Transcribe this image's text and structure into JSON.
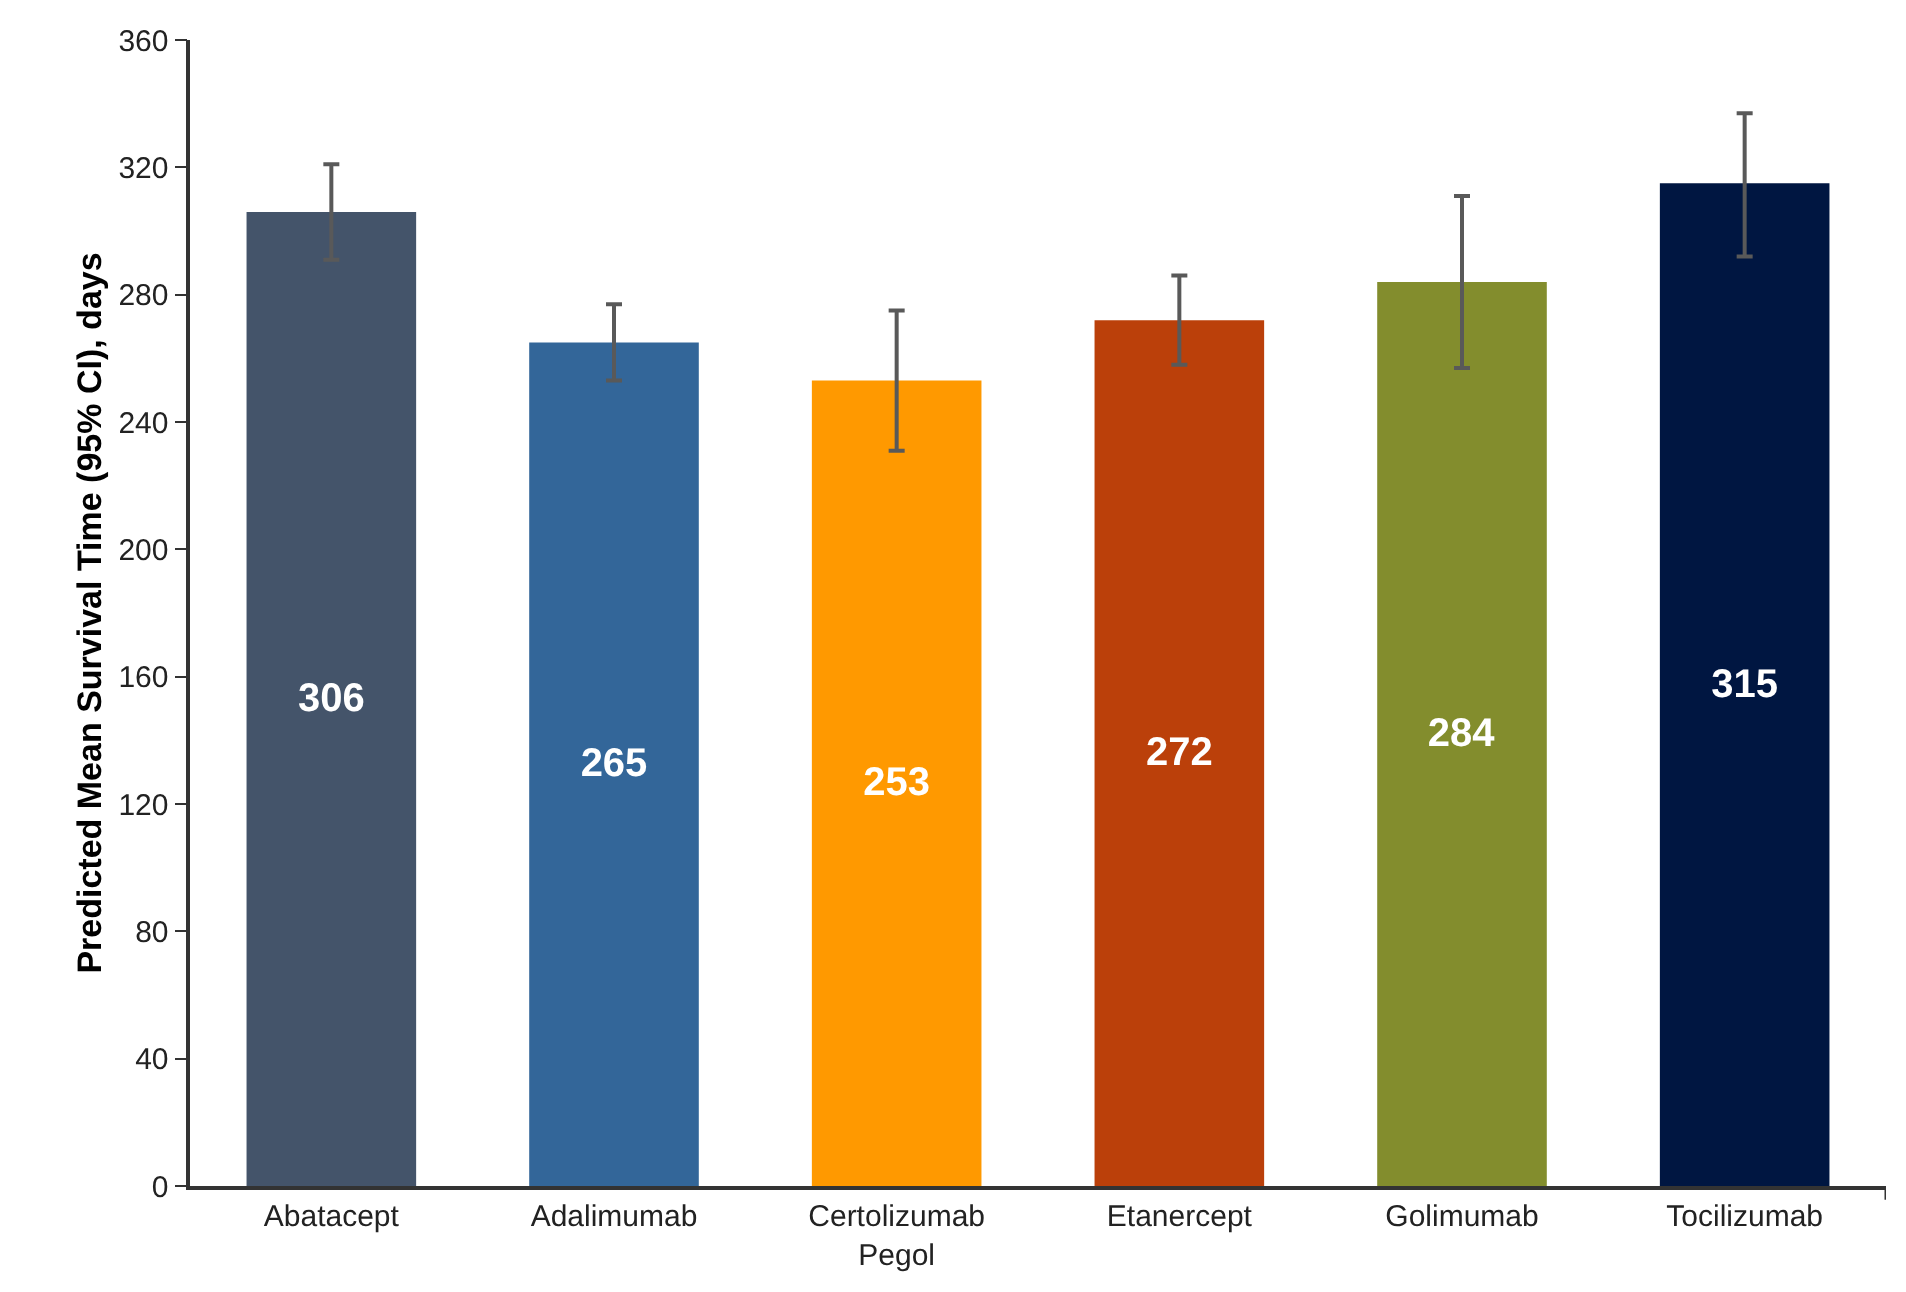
{
  "chart_data": {
    "type": "bar",
    "ylabel": "Predicted Mean Survival Time (95% CI), days",
    "categories": [
      "Abatacept",
      "Adalimumab",
      "Certolizumab Pegol",
      "Etanercept",
      "Golimumab",
      "Tocilizumab"
    ],
    "values": [
      306,
      265,
      253,
      272,
      284,
      315
    ],
    "colors": [
      "#44546a",
      "#336699",
      "#ff9900",
      "#bb400a",
      "#838d2d",
      "#001641"
    ],
    "errors": [
      [
        291,
        321
      ],
      [
        253,
        277
      ],
      [
        231,
        275
      ],
      [
        258,
        286
      ],
      [
        257,
        311
      ],
      [
        292,
        337
      ]
    ],
    "ylim": [
      0,
      360
    ],
    "yticks": [
      0,
      40,
      80,
      120,
      160,
      200,
      240,
      280,
      320,
      360
    ],
    "grid": false,
    "data_labels": true
  }
}
